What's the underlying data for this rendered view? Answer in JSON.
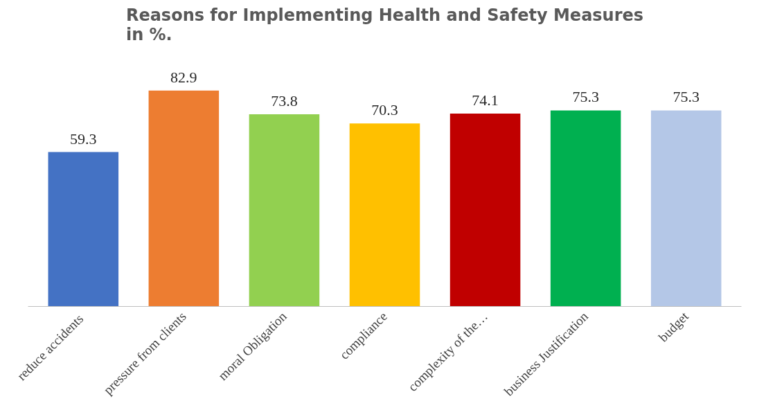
{
  "chart_data": {
    "type": "bar",
    "title": "Reasons for Implementing Health and Safety Measures\nin %.",
    "categories": [
      "reduce  accidents",
      "pressure from clients",
      "moral Obligation",
      "compliance",
      "complexity of the…",
      "business Justification",
      "budget"
    ],
    "values": [
      59.3,
      82.9,
      73.8,
      70.3,
      74.1,
      75.3,
      75.3
    ],
    "colors": [
      "#4472c4",
      "#ed7d31",
      "#92d050",
      "#ffc000",
      "#c00000",
      "#00b050",
      "#b4c7e7"
    ],
    "data_labels": true,
    "grid": false
  }
}
